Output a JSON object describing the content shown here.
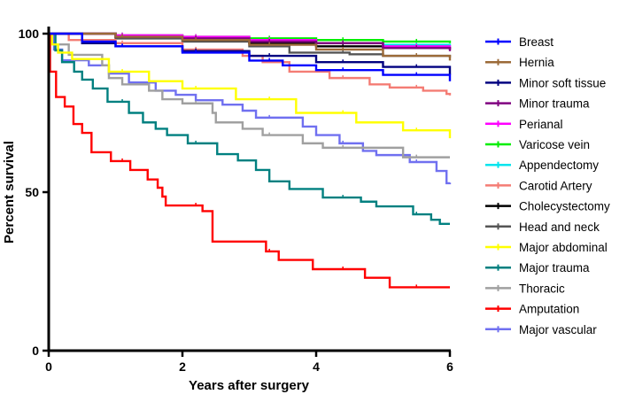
{
  "chart_data": {
    "type": "line",
    "subtype": "kaplan-meier step",
    "xlabel": "Years after surgery",
    "ylabel": "Percent survival",
    "xlim": [
      0,
      6
    ],
    "ylim": [
      0,
      100
    ],
    "xticks": [
      0,
      2,
      4,
      6
    ],
    "yticks": [
      0,
      50,
      100
    ],
    "grid": false,
    "legend_position": "right",
    "series": [
      {
        "name": "Breast",
        "color": "#0000ff",
        "points": [
          [
            0,
            100
          ],
          [
            0.5,
            97.5
          ],
          [
            1,
            96
          ],
          [
            2,
            94
          ],
          [
            3,
            91.5
          ],
          [
            3.5,
            90
          ],
          [
            4,
            88.5
          ],
          [
            5,
            87
          ],
          [
            6,
            85
          ]
        ]
      },
      {
        "name": "Hernia",
        "color": "#9b6a38",
        "points": [
          [
            0,
            100
          ],
          [
            1,
            99
          ],
          [
            2,
            98
          ],
          [
            3,
            96.5
          ],
          [
            4,
            95
          ],
          [
            5,
            93
          ],
          [
            6,
            91.5
          ]
        ]
      },
      {
        "name": "Minor soft tissue",
        "color": "#000080",
        "points": [
          [
            0,
            100
          ],
          [
            0.5,
            97
          ],
          [
            1,
            96
          ],
          [
            2,
            94.5
          ],
          [
            3,
            93
          ],
          [
            4,
            91
          ],
          [
            5,
            89.5
          ],
          [
            6,
            87
          ]
        ]
      },
      {
        "name": "Minor trauma",
        "color": "#800080",
        "points": [
          [
            0,
            100
          ],
          [
            1,
            99
          ],
          [
            2,
            98.5
          ],
          [
            3,
            97.5
          ],
          [
            4,
            97
          ],
          [
            5,
            95.5
          ],
          [
            6,
            94.5
          ]
        ]
      },
      {
        "name": "Perianal",
        "color": "#ff00ff",
        "points": [
          [
            0,
            100
          ],
          [
            1,
            99.5
          ],
          [
            2,
            99
          ],
          [
            3,
            98
          ],
          [
            4,
            97
          ],
          [
            5,
            96
          ],
          [
            6,
            95
          ]
        ]
      },
      {
        "name": "Varicose vein",
        "color": "#00ee00",
        "points": [
          [
            0,
            100
          ],
          [
            1,
            99.5
          ],
          [
            2,
            99
          ],
          [
            3,
            98.5
          ],
          [
            4,
            98
          ],
          [
            5,
            97.5
          ],
          [
            6,
            97
          ]
        ]
      },
      {
        "name": "Appendectomy",
        "color": "#00e5ee",
        "points": [
          [
            0,
            100
          ],
          [
            1,
            99.3
          ],
          [
            2,
            98.5
          ],
          [
            3,
            98
          ],
          [
            4,
            97
          ],
          [
            5,
            96.5
          ],
          [
            6,
            96
          ]
        ]
      },
      {
        "name": "Carotid Artery",
        "color": "#f47c74",
        "points": [
          [
            0,
            100
          ],
          [
            0.3,
            98
          ],
          [
            1,
            97
          ],
          [
            2,
            95
          ],
          [
            2.9,
            93
          ],
          [
            3.2,
            91
          ],
          [
            3.6,
            88
          ],
          [
            4.2,
            86
          ],
          [
            4.8,
            84
          ],
          [
            5.1,
            83
          ],
          [
            5.6,
            82
          ],
          [
            5.95,
            81
          ],
          [
            6,
            80.5
          ]
        ]
      },
      {
        "name": "Cholecystectomy",
        "color": "#000000",
        "points": [
          [
            0,
            100
          ],
          [
            1,
            99
          ],
          [
            2,
            98
          ],
          [
            3,
            97
          ],
          [
            4,
            96
          ],
          [
            5,
            95.5
          ],
          [
            6,
            95
          ]
        ]
      },
      {
        "name": "Head and neck",
        "color": "#555555",
        "points": [
          [
            0,
            100
          ],
          [
            1,
            98.5
          ],
          [
            2,
            97.5
          ],
          [
            3,
            96
          ],
          [
            3.6,
            94
          ],
          [
            4.5,
            93.5
          ],
          [
            5,
            93
          ],
          [
            6,
            92.5
          ]
        ]
      },
      {
        "name": "Major abdominal",
        "color": "#ffff00",
        "points": [
          [
            0,
            100
          ],
          [
            0.05,
            96.6
          ],
          [
            0.14,
            94
          ],
          [
            0.35,
            92
          ],
          [
            0.9,
            88
          ],
          [
            1.5,
            85
          ],
          [
            2,
            82.7
          ],
          [
            2.8,
            79.3
          ],
          [
            3.7,
            75
          ],
          [
            4.6,
            72
          ],
          [
            5.3,
            69.5
          ],
          [
            6,
            67
          ]
        ]
      },
      {
        "name": "Major trauma",
        "color": "#008080",
        "points": [
          [
            0,
            100
          ],
          [
            0.1,
            94.7
          ],
          [
            0.2,
            91
          ],
          [
            0.38,
            88
          ],
          [
            0.5,
            85.5
          ],
          [
            0.66,
            82.7
          ],
          [
            0.88,
            78.5
          ],
          [
            1.2,
            75
          ],
          [
            1.41,
            72
          ],
          [
            1.6,
            70
          ],
          [
            1.77,
            68
          ],
          [
            2.08,
            65.4
          ],
          [
            2.52,
            62
          ],
          [
            2.83,
            60
          ],
          [
            3.1,
            57
          ],
          [
            3.3,
            53.4
          ],
          [
            3.6,
            51
          ],
          [
            4.1,
            48.3
          ],
          [
            4.67,
            47
          ],
          [
            4.9,
            45.5
          ],
          [
            5.45,
            43
          ],
          [
            5.72,
            41.3
          ],
          [
            5.85,
            40
          ],
          [
            6,
            40
          ]
        ]
      },
      {
        "name": "Thoracic",
        "color": "#a0a0a0",
        "points": [
          [
            0,
            100
          ],
          [
            0.1,
            96.6
          ],
          [
            0.3,
            93.3
          ],
          [
            0.8,
            90
          ],
          [
            0.9,
            86
          ],
          [
            1.1,
            84
          ],
          [
            1.5,
            82
          ],
          [
            1.7,
            79.3
          ],
          [
            2,
            78
          ],
          [
            2.45,
            75
          ],
          [
            2.5,
            72
          ],
          [
            2.9,
            70
          ],
          [
            3.2,
            68
          ],
          [
            3.8,
            65.4
          ],
          [
            4.1,
            64
          ],
          [
            5.3,
            61
          ],
          [
            6,
            61
          ]
        ]
      },
      {
        "name": "Amputation",
        "color": "#ff0000",
        "points": [
          [
            0,
            100
          ],
          [
            0.02,
            88
          ],
          [
            0.11,
            80
          ],
          [
            0.24,
            77
          ],
          [
            0.37,
            71.5
          ],
          [
            0.5,
            68.7
          ],
          [
            0.64,
            62.6
          ],
          [
            0.93,
            59.8
          ],
          [
            1.22,
            57
          ],
          [
            1.48,
            54
          ],
          [
            1.63,
            51.4
          ],
          [
            1.7,
            48.6
          ],
          [
            1.75,
            45.8
          ],
          [
            2.3,
            44
          ],
          [
            2.45,
            34.4
          ],
          [
            3.25,
            31.3
          ],
          [
            3.44,
            28.6
          ],
          [
            3.95,
            25.7
          ],
          [
            4.73,
            23
          ],
          [
            5.1,
            20
          ],
          [
            6,
            20
          ]
        ]
      },
      {
        "name": "Major vascular",
        "color": "#7070f0",
        "points": [
          [
            0,
            100
          ],
          [
            0.08,
            95
          ],
          [
            0.2,
            91.6
          ],
          [
            0.6,
            90
          ],
          [
            0.9,
            87.4
          ],
          [
            1.2,
            84.6
          ],
          [
            1.6,
            82
          ],
          [
            1.9,
            80.7
          ],
          [
            2.2,
            79
          ],
          [
            2.6,
            77.6
          ],
          [
            2.9,
            75.7
          ],
          [
            3.1,
            73.5
          ],
          [
            3.8,
            70.7
          ],
          [
            4,
            68
          ],
          [
            4.35,
            65.4
          ],
          [
            4.7,
            63
          ],
          [
            4.9,
            61.7
          ],
          [
            5.4,
            59.5
          ],
          [
            5.8,
            56.7
          ],
          [
            5.95,
            52.8
          ],
          [
            6,
            53
          ]
        ]
      }
    ]
  }
}
